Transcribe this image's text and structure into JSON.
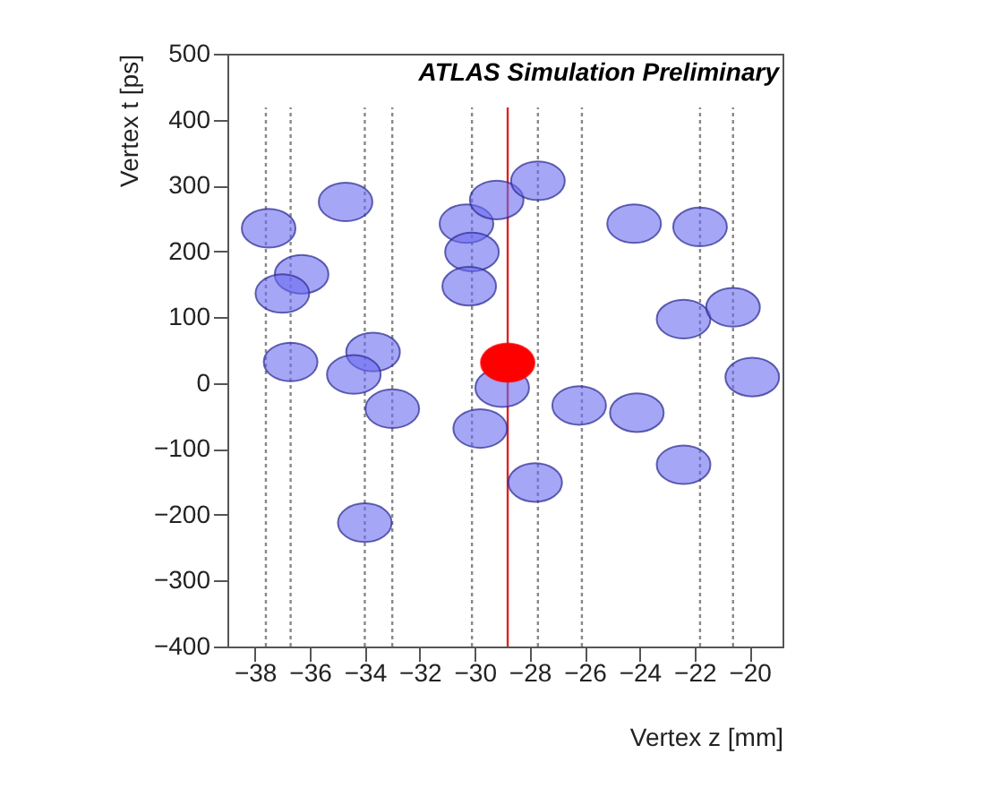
{
  "chart_data": {
    "type": "scatter",
    "xlabel": "Vertex z [mm]",
    "ylabel": "Vertex t [ps]",
    "annotations": [
      "ATLAS Simulation Preliminary"
    ],
    "xlim": [
      -39,
      -18.8
    ],
    "xticks": [
      -38,
      -36,
      -34,
      -32,
      -30,
      -28,
      -26,
      -24,
      -22,
      -20
    ],
    "ylim": [
      -400,
      500
    ],
    "yticks": [
      -400,
      -300,
      -200,
      -100,
      0,
      100,
      200,
      300,
      400,
      500
    ],
    "grid": false,
    "marker": "circle",
    "series": [
      {
        "color": "#6b6bf0",
        "x": [
          -37.5,
          -36.3,
          -37.0,
          -34.7,
          -36.7,
          -33.7,
          -34.4,
          -33.0,
          -30.3,
          -30.1,
          -30.2,
          -29.2,
          -27.7,
          -29.0,
          -29.8,
          -26.2,
          -24.1,
          -24.2,
          -21.8,
          -22.4,
          -20.6,
          -19.9,
          -27.8,
          -22.4,
          -34.0
        ],
        "values": [
          235,
          165,
          136,
          275,
          32,
          47,
          13,
          -39,
          242,
          199,
          147,
          278,
          307,
          -7,
          -69,
          -34,
          -45,
          242,
          237,
          97,
          115,
          9,
          -151,
          -124,
          -212
        ]
      },
      {
        "color": "#ff0000",
        "x": [
          -28.8
        ],
        "values": [
          31
        ]
      }
    ],
    "ref_lines": [
      {
        "axis": "x",
        "value": -37.6,
        "color": "#888888",
        "line_style": "dotted"
      },
      {
        "axis": "x",
        "value": -36.7,
        "color": "#888888",
        "line_style": "dotted"
      },
      {
        "axis": "x",
        "value": -34.0,
        "color": "#888888",
        "line_style": "dotted"
      },
      {
        "axis": "x",
        "value": -33.0,
        "color": "#888888",
        "line_style": "dotted"
      },
      {
        "axis": "x",
        "value": -30.1,
        "color": "#888888",
        "line_style": "dotted"
      },
      {
        "axis": "x",
        "value": -27.7,
        "color": "#888888",
        "line_style": "dotted"
      },
      {
        "axis": "x",
        "value": -26.1,
        "color": "#888888",
        "line_style": "dotted"
      },
      {
        "axis": "x",
        "value": -21.8,
        "color": "#888888",
        "line_style": "dotted"
      },
      {
        "axis": "x",
        "value": -20.6,
        "color": "#888888",
        "line_style": "dotted"
      },
      {
        "axis": "x",
        "value": -28.8,
        "color": "#dd2222",
        "line_style": "solid"
      }
    ]
  }
}
